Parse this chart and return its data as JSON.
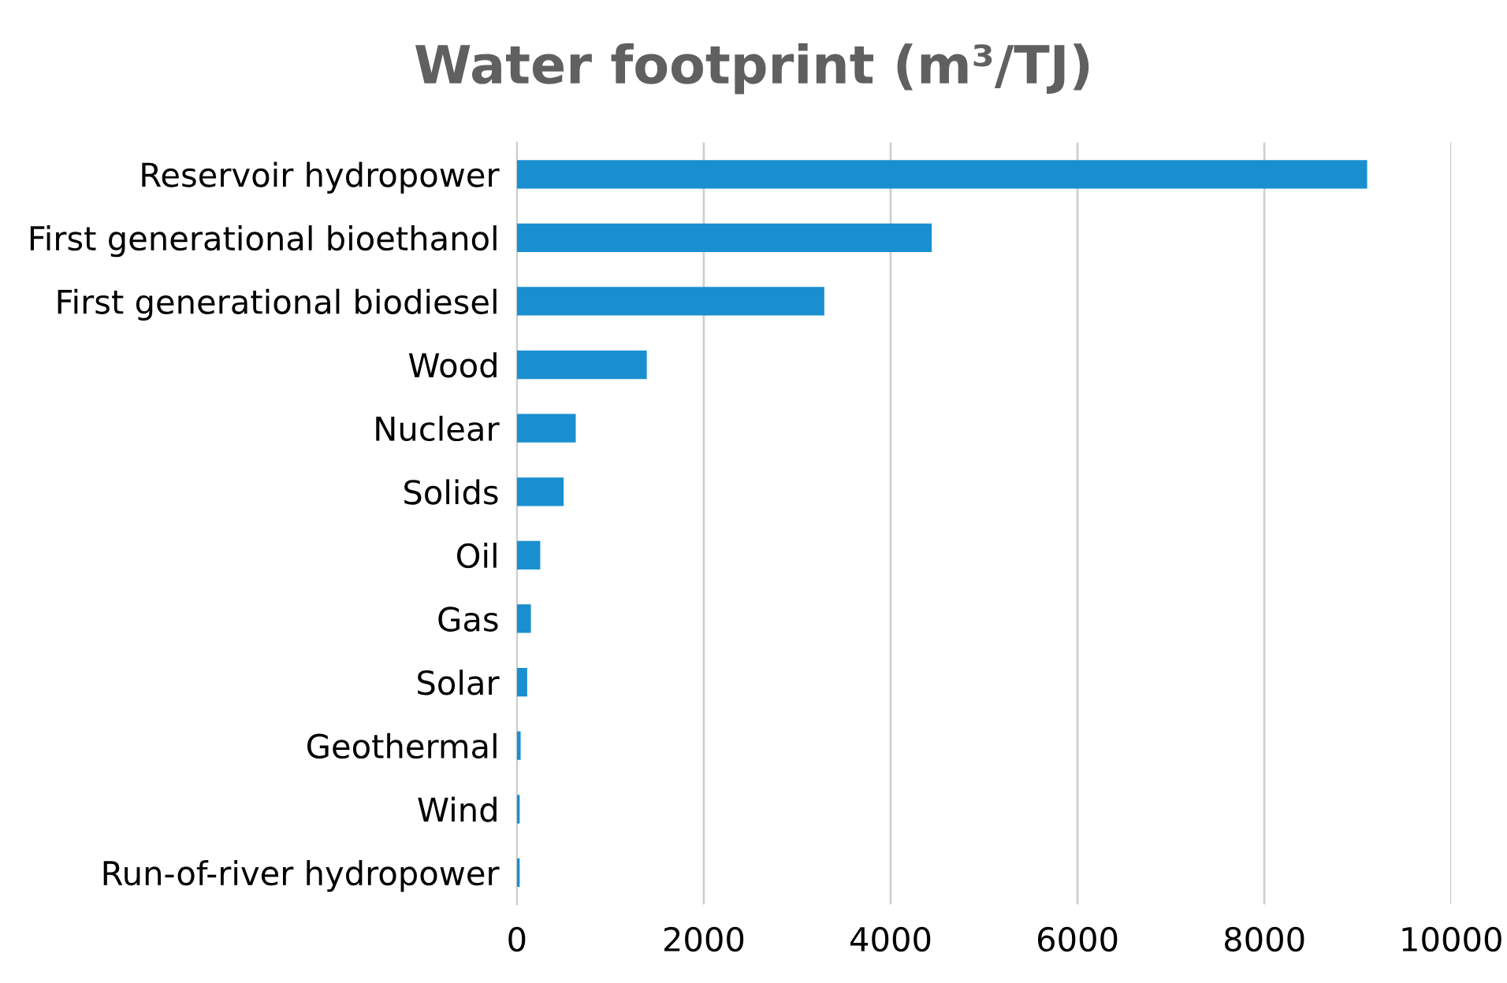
{
  "chart_data": {
    "type": "bar",
    "orientation": "horizontal",
    "title": "Water footprint (m³/TJ)",
    "categories": [
      "Reservoir hydropower",
      "First generational bioethanol",
      "First generational biodiesel",
      "Wood",
      "Nuclear",
      "Solids",
      "Oil",
      "Gas",
      "Solar",
      "Geothermal",
      "Wind",
      "Run-of-river hydropower"
    ],
    "values": [
      9100,
      4440,
      3290,
      1390,
      630,
      500,
      250,
      150,
      110,
      40,
      30,
      30
    ],
    "color": "#1a8fd0",
    "xlim": [
      0,
      10000
    ],
    "xticks": [
      0,
      2000,
      4000,
      6000,
      8000,
      10000
    ],
    "grid": "x"
  }
}
